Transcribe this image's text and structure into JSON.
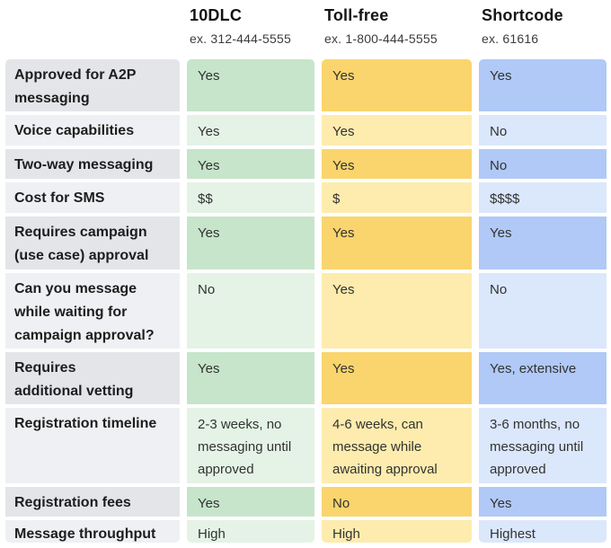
{
  "chart_data": {
    "type": "table",
    "description_row_header": "",
    "columns": [
      {
        "title": "10DLC",
        "subtitle": "ex. 312-444-5555",
        "theme_color": "#c6e5ca"
      },
      {
        "title": "Toll-free",
        "subtitle": "ex. 1-800-444-5555",
        "theme_color": "#fad56d"
      },
      {
        "title": "Shortcode",
        "subtitle": "ex. 61616",
        "theme_color": "#b0c9f6"
      }
    ],
    "rows": [
      {
        "label": "Approved for A2P\nmessaging",
        "values": [
          "Yes",
          "Yes",
          "Yes"
        ]
      },
      {
        "label": "Voice capabilities",
        "values": [
          "Yes",
          "Yes",
          "No"
        ]
      },
      {
        "label": "Two-way messaging",
        "values": [
          "Yes",
          "Yes",
          "No"
        ]
      },
      {
        "label": "Cost for SMS",
        "values": [
          "$$",
          "$",
          "$$$$"
        ]
      },
      {
        "label": "Requires campaign\n(use case) approval",
        "values": [
          "Yes",
          "Yes",
          "Yes"
        ]
      },
      {
        "label": "Can you message\nwhile waiting for\ncampaign approval?",
        "values": [
          "No",
          "Yes",
          "No"
        ]
      },
      {
        "label": "Requires\nadditional vetting",
        "values": [
          "Yes",
          "Yes",
          "Yes, extensive"
        ]
      },
      {
        "label": "Registration timeline",
        "values": [
          "2-3 weeks, no\nmessaging until\napproved",
          "4-6 weeks, can\nmessage while\nawaiting approval",
          "3-6 months, no\nmessaging until\napproved"
        ]
      },
      {
        "label": "Registration fees",
        "values": [
          "Yes",
          "No",
          "Yes"
        ]
      },
      {
        "label": "Message throughput",
        "values": [
          "High",
          "High",
          "Highest"
        ]
      }
    ]
  },
  "colors": {
    "label_dark": "#e3e5e9",
    "label_light": "#eff0f3",
    "green_dark": "#c6e5ca",
    "green_light": "#e4f3e6",
    "yellow_dark": "#fad56d",
    "yellow_light": "#fdecae",
    "blue_dark": "#b0c9f6",
    "blue_light": "#dbe7fb"
  }
}
